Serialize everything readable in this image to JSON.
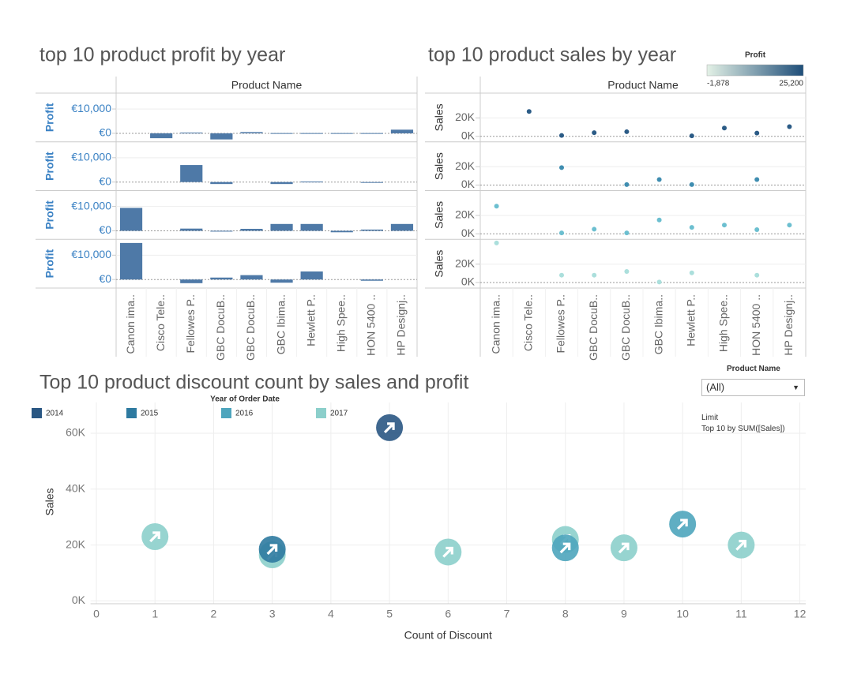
{
  "chart_data": [
    {
      "type": "bar",
      "title": "top 10 product profit by year",
      "column_header": "Product Name",
      "y_label": "Profit",
      "categories": [
        "Canon ima..",
        "Cisco Tele..",
        "Fellowes P..",
        "GBC DocuB..",
        "GBC DocuB..",
        "GBC Ibima..",
        "Hewlett P..",
        "High Spee..",
        "HON 5400 ..",
        "HP Designj.."
      ],
      "color": "#4e79a7",
      "ylim": [
        -3500,
        16500
      ],
      "yticks": [
        {
          "value": 0,
          "label": "€0"
        },
        {
          "value": 10000,
          "label": "€10,000"
        }
      ],
      "rows": [
        {
          "values": [
            null,
            -2000,
            300,
            -2500,
            500,
            100,
            100,
            100,
            100,
            1500
          ]
        },
        {
          "values": [
            null,
            null,
            7000,
            -800,
            null,
            -800,
            200,
            null,
            -100,
            null
          ]
        },
        {
          "values": [
            9400,
            null,
            900,
            -300,
            800,
            2800,
            2800,
            -600,
            500,
            2800
          ]
        },
        {
          "values": [
            15000,
            null,
            -1500,
            800,
            1800,
            -1300,
            3300,
            null,
            -500,
            null
          ]
        }
      ]
    },
    {
      "type": "dot",
      "title": "top 10 product sales by year",
      "column_header": "Product Name",
      "y_label": "Sales",
      "categories": [
        "Canon ima..",
        "Cisco Tele..",
        "Fellowes P..",
        "GBC DocuB..",
        "GBC DocuB..",
        "GBC Ibima..",
        "Hewlett P..",
        "High Spee..",
        "HON 5400 ..",
        "HP Designj.."
      ],
      "ylim": [
        -6000,
        47000
      ],
      "yticks": [
        {
          "value": 0,
          "label": "0K"
        },
        {
          "value": 20000,
          "label": "20K"
        }
      ],
      "color_legend": {
        "title": "Profit",
        "colors": [
          "#e3f1e6",
          "#1f4e79"
        ],
        "min": {
          "value": -1878,
          "label": "-1,878"
        },
        "max": {
          "value": 25200,
          "label": "25,200"
        }
      },
      "rows": [
        {
          "color": "#2b5b86",
          "values": [
            null,
            27000,
            1000,
            4000,
            5000,
            null,
            500,
            9000,
            3500,
            10500
          ]
        },
        {
          "color": "#3f8db0",
          "values": [
            null,
            null,
            19000,
            null,
            500,
            6000,
            500,
            null,
            6000,
            null
          ]
        },
        {
          "color": "#6cbfd0",
          "values": [
            30000,
            null,
            1000,
            5000,
            1000,
            15000,
            7000,
            9500,
            4500,
            9500
          ]
        },
        {
          "color": "#abdfdc",
          "values": [
            43000,
            null,
            8000,
            8000,
            12000,
            500,
            10500,
            null,
            8000,
            null
          ]
        }
      ]
    },
    {
      "type": "scatter",
      "title": "Top 10 product discount count by sales and profit",
      "legend_title": "Year of Order Date",
      "x_label": "Count of Discount",
      "y_label": "Sales",
      "xlim": [
        -0.1,
        12.1
      ],
      "xticks": [
        0,
        1,
        2,
        3,
        4,
        5,
        6,
        7,
        8,
        9,
        10,
        11,
        12
      ],
      "ylim": [
        -1000,
        71000
      ],
      "yticks": [
        {
          "value": 0,
          "label": "0K"
        },
        {
          "value": 20000,
          "label": "20K"
        },
        {
          "value": 40000,
          "label": "40K"
        },
        {
          "value": 60000,
          "label": "60K"
        }
      ],
      "grid": true,
      "series": [
        {
          "name": "2014",
          "color": "#2a5783",
          "x": [
            5
          ],
          "y": [
            62000
          ]
        },
        {
          "name": "2015",
          "color": "#2e7aa0",
          "x": [
            3
          ],
          "y": [
            18500
          ]
        },
        {
          "name": "2016",
          "color": "#4ea5bd",
          "x": [
            8,
            10
          ],
          "y": [
            19000,
            27500
          ]
        },
        {
          "name": "2017",
          "color": "#8ccfcb",
          "x": [
            1,
            3,
            6,
            8,
            9,
            11
          ],
          "y": [
            23000,
            16500,
            17500,
            22000,
            19000,
            20000
          ]
        }
      ]
    }
  ],
  "controls": {
    "filter_title": "Product Name",
    "filter_value": "(All)",
    "limit_title": "Limit",
    "limit_text": "Top 10 by SUM([Sales])"
  }
}
